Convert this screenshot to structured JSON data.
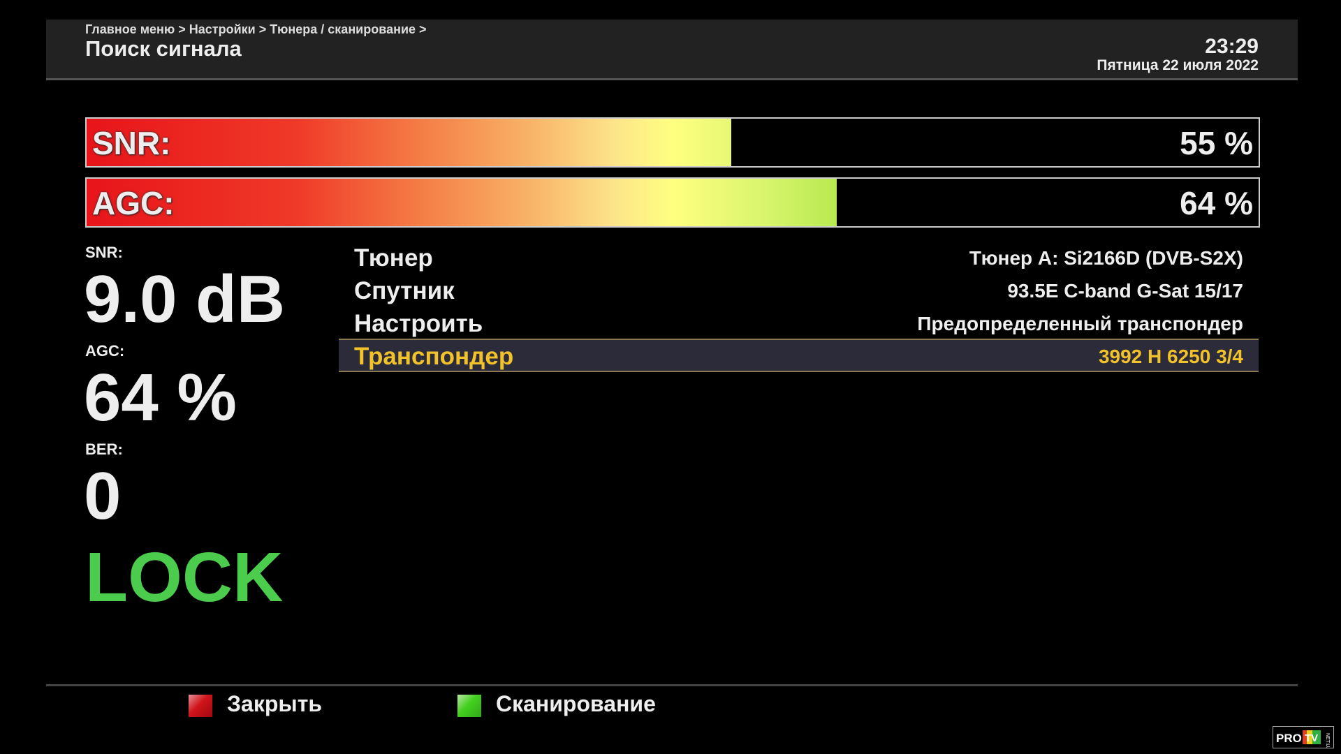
{
  "header": {
    "breadcrumb": "Главное меню > Настройки > Тюнера / сканирование >",
    "title": "Поиск сигнала",
    "time": "23:29",
    "date": "Пятница 22 июля 2022"
  },
  "bars": [
    {
      "label": "SNR:",
      "value_text": "55 %",
      "percent": 55
    },
    {
      "label": "AGC:",
      "value_text": "64 %",
      "percent": 64
    }
  ],
  "stats": {
    "snr_label": "SNR:",
    "snr_value": "9.0 dB",
    "agc_label": "AGC:",
    "agc_value": "64 %",
    "ber_label": "BER:",
    "ber_value": "0",
    "status": "LOCK"
  },
  "rows": [
    {
      "label": "Тюнер",
      "value": "Тюнер A: Si2166D (DVB-S2X)"
    },
    {
      "label": "Спутник",
      "value": "93.5E C-band G-Sat 15/17"
    },
    {
      "label": "Настроить",
      "value": "Предопределенный транспондер"
    },
    {
      "label": "Транспондер",
      "value": "3992 H 6250 3/4",
      "selected": true
    }
  ],
  "footer": {
    "close_label": "Закрыть",
    "scan_label": "Сканирование"
  },
  "colors": {
    "lock": "#4ccc4c",
    "selected_text": "#f2c22a",
    "red_key": "#d0141a",
    "green_key": "#44d020"
  },
  "watermark": "PRO TV NET.UA"
}
